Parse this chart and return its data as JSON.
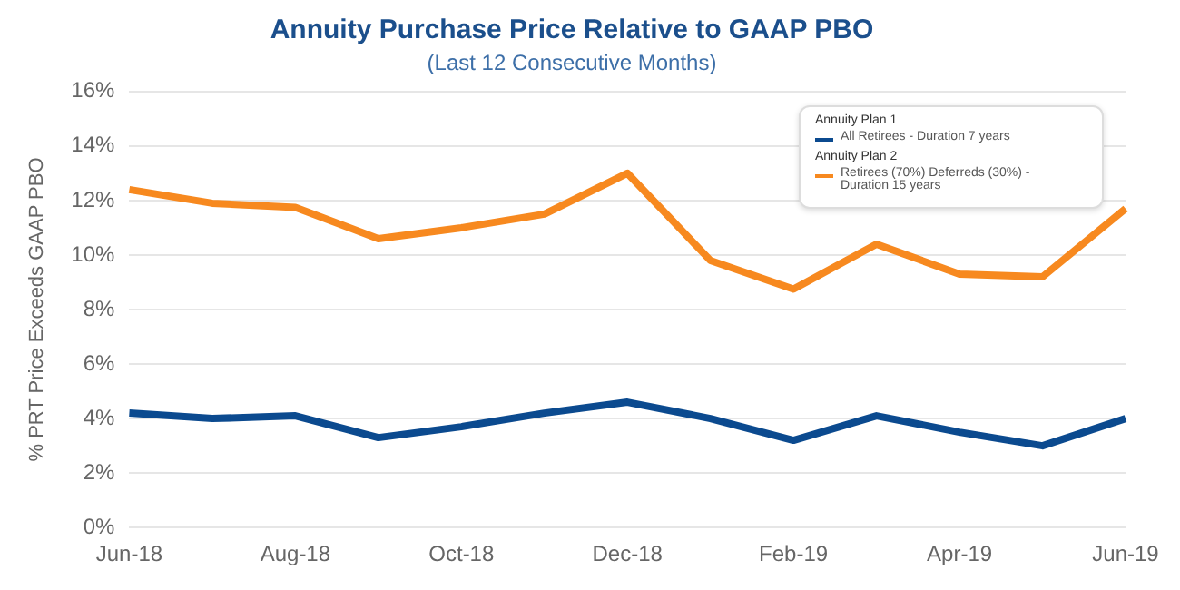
{
  "chart_data": {
    "type": "line",
    "title": "Annuity Purchase Price Relative to GAAP PBO",
    "subtitle": "(Last 12 Consecutive Months)",
    "ylabel": "% PRT Price Exceeds GAAP PBO",
    "categories": [
      "Jun-18",
      null,
      "Aug-18",
      null,
      "Oct-18",
      null,
      "Dec-18",
      null,
      "Feb-19",
      null,
      "Apr-19",
      null,
      "Jun-19"
    ],
    "series": [
      {
        "name": "All Retirees - Duration 7 years",
        "color": "#0b4a8f",
        "values": [
          4.2,
          4.0,
          4.1,
          3.3,
          3.7,
          4.2,
          4.6,
          4.0,
          3.2,
          4.1,
          3.5,
          3.0,
          4.0
        ]
      },
      {
        "name": "Retirees (70%) Deferreds (30%) - Duration 15 years",
        "color": "#f7891f",
        "values": [
          12.4,
          11.9,
          11.75,
          10.6,
          11.0,
          11.5,
          13.0,
          9.8,
          8.75,
          10.4,
          9.3,
          9.2,
          11.7
        ]
      }
    ],
    "annotations": [
      "Annuity Plan 1",
      "Annuity Plan 2"
    ],
    "ylim": [
      0,
      16
    ],
    "yticks": [
      {
        "value": 0,
        "label": "0%"
      },
      {
        "value": 2,
        "label": "2%"
      },
      {
        "value": 4,
        "label": "4%"
      },
      {
        "value": 6,
        "label": "6%"
      },
      {
        "value": 8,
        "label": "8%"
      },
      {
        "value": 10,
        "label": "10%"
      },
      {
        "value": 12,
        "label": "12%"
      },
      {
        "value": 14,
        "label": "14%"
      },
      {
        "value": 16,
        "label": "16%"
      }
    ],
    "grid": "y",
    "legend": "top right",
    "marker": "none",
    "line_style": "solid"
  }
}
